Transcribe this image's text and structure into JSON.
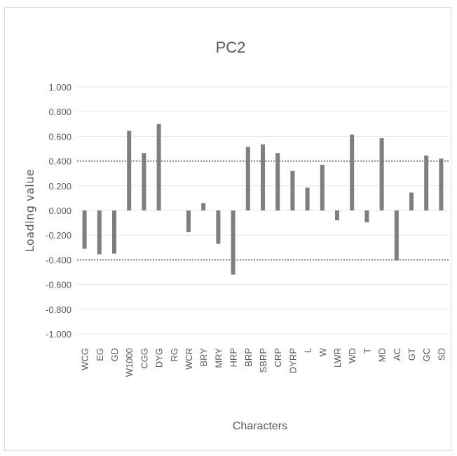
{
  "chart_data": {
    "type": "bar",
    "title": "PC2",
    "xlabel": "Characters",
    "ylabel": "Loading value",
    "ylim": [
      -1.0,
      1.0
    ],
    "yticks": [
      "1.000",
      "0.800",
      "0.600",
      "0.400",
      "0.200",
      "0.000",
      "-0.200",
      "-0.400",
      "-0.600",
      "-0.800",
      "-1.000"
    ],
    "grid": true,
    "legend": "none",
    "reference_lines": [
      0.4,
      -0.4
    ],
    "categories": [
      "WCG",
      "EG",
      "GD",
      "W1000",
      "CGG",
      "DYG",
      "RG",
      "WCR",
      "BRY",
      "MRY",
      "HRP",
      "BRP",
      "SBRP",
      "CRP",
      "DYRP",
      "L",
      "W",
      "LWR",
      "WD",
      "T",
      "MD",
      "AC",
      "GT",
      "GC",
      "SD"
    ],
    "values": [
      -0.31,
      -0.355,
      -0.35,
      0.645,
      0.465,
      0.7,
      0.0,
      -0.175,
      0.06,
      -0.27,
      -0.52,
      0.515,
      0.535,
      0.465,
      0.32,
      0.185,
      0.37,
      -0.08,
      0.615,
      -0.095,
      0.585,
      -0.405,
      0.145,
      0.445,
      0.42
    ],
    "bar_color": "#7f7f7f",
    "reference_line_color": "#7f7f7f",
    "grid_color": "#e8e8e8"
  }
}
